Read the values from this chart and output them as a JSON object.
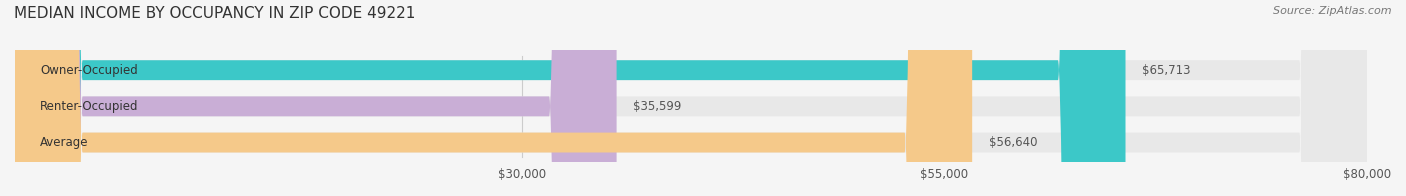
{
  "title": "MEDIAN INCOME BY OCCUPANCY IN ZIP CODE 49221",
  "source": "Source: ZipAtlas.com",
  "categories": [
    "Owner-Occupied",
    "Renter-Occupied",
    "Average"
  ],
  "values": [
    65713,
    35599,
    56640
  ],
  "bar_colors": [
    "#3cc8c8",
    "#c9aed6",
    "#f5c98a"
  ],
  "bar_labels": [
    "$65,713",
    "$35,599",
    "$56,640"
  ],
  "xlim": [
    0,
    80000
  ],
  "xticks": [
    0,
    30000,
    55000,
    80000
  ],
  "xtick_labels": [
    "",
    "$30,000",
    "$55,000",
    "$80,000"
  ],
  "bg_color": "#f5f5f5",
  "bar_bg_color": "#e8e8e8",
  "title_fontsize": 11,
  "source_fontsize": 8,
  "label_fontsize": 8.5,
  "tick_fontsize": 8.5
}
